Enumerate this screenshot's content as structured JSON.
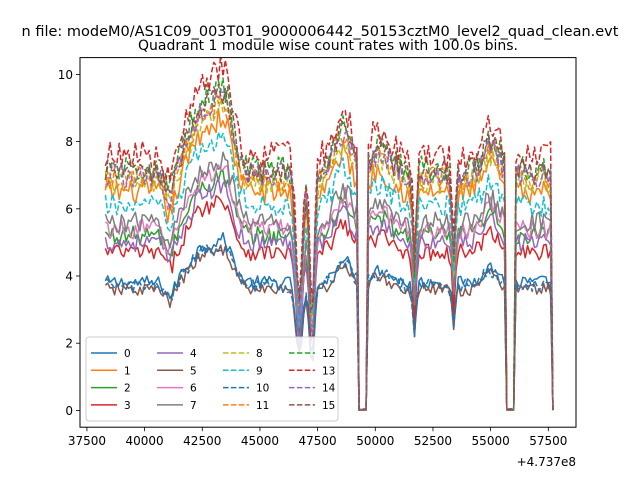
{
  "chart_data": {
    "type": "line",
    "suptitle": "n file: modeM0/AS1C09_003T01_9000006442_50153cztM0_level2_quad_clean.evt",
    "title": "Quadrant 1 module wise count rates with 100.0s bins.",
    "xlabel": "",
    "ylabel": "",
    "offset_label": "+4.737e8",
    "xlim": [
      37200,
      58700
    ],
    "ylim": [
      -0.5,
      10.5
    ],
    "xticks": [
      37500,
      40000,
      42500,
      45000,
      47500,
      50000,
      52500,
      55000,
      57500
    ],
    "xtick_labels": [
      "37500",
      "40000",
      "42500",
      "45000",
      "47500",
      "50000",
      "52500",
      "55000",
      "57500"
    ],
    "yticks": [
      0,
      2,
      4,
      6,
      8,
      10
    ],
    "ytick_labels": [
      "0",
      "2",
      "4",
      "6",
      "8",
      "10"
    ],
    "grid": false,
    "legend_position": "lower-left",
    "legend_ncol": 4,
    "x_start": 38300,
    "x_end": 57700,
    "bin": 100,
    "gaps": [
      [
        49300,
        49600
      ],
      [
        55700,
        56000
      ],
      [
        57700,
        57750
      ]
    ],
    "dips": [
      {
        "center": 46700,
        "width": 200,
        "depth": 0.55
      },
      {
        "center": 47250,
        "width": 150,
        "depth": 0.6
      },
      {
        "center": 51700,
        "width": 100,
        "depth": 0.4
      },
      {
        "center": 53400,
        "width": 100,
        "depth": 0.35
      }
    ],
    "series": [
      {
        "name": "0",
        "color": "#1f77b4",
        "dash": "solid",
        "base": 3.8
      },
      {
        "name": "1",
        "color": "#ff7f0e",
        "dash": "solid",
        "base": 6.5
      },
      {
        "name": "2",
        "color": "#2ca02c",
        "dash": "solid",
        "base": 5.2
      },
      {
        "name": "3",
        "color": "#d62728",
        "dash": "solid",
        "base": 4.7
      },
      {
        "name": "4",
        "color": "#9467bd",
        "dash": "solid",
        "base": 5.0
      },
      {
        "name": "5",
        "color": "#8c564b",
        "dash": "solid",
        "base": 3.6
      },
      {
        "name": "6",
        "color": "#e377c2",
        "dash": "solid",
        "base": 5.4
      },
      {
        "name": "7",
        "color": "#7f7f7f",
        "dash": "solid",
        "base": 5.6
      },
      {
        "name": "8",
        "color": "#bcbd22",
        "dash": "dashed",
        "base": 6.8
      },
      {
        "name": "9",
        "color": "#17becf",
        "dash": "dashed",
        "base": 6.1
      },
      {
        "name": "10",
        "color": "#1f77b4",
        "dash": "dashed",
        "base": 3.7
      },
      {
        "name": "11",
        "color": "#ff7f0e",
        "dash": "dashed",
        "base": 6.9
      },
      {
        "name": "12",
        "color": "#2ca02c",
        "dash": "dashed",
        "base": 7.2
      },
      {
        "name": "13",
        "color": "#d62728",
        "dash": "dashed",
        "base": 7.6
      },
      {
        "name": "14",
        "color": "#9467bd",
        "dash": "dashed",
        "base": 7.0
      },
      {
        "name": "15",
        "color": "#8c564b",
        "dash": "dashed",
        "base": 7.1
      }
    ]
  }
}
